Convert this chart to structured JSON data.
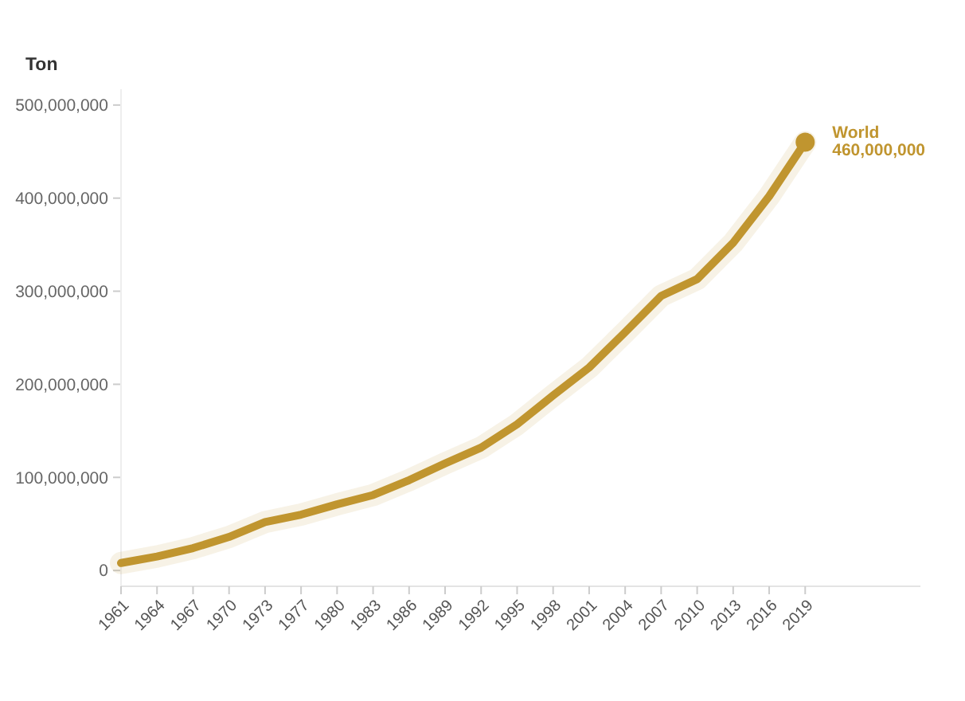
{
  "chart_data": {
    "type": "line",
    "ylabel": "Ton",
    "categories": [
      "1961",
      "1964",
      "1967",
      "1970",
      "1973",
      "1977",
      "1980",
      "1983",
      "1986",
      "1989",
      "1992",
      "1995",
      "1998",
      "2001",
      "2004",
      "2007",
      "2010",
      "2013",
      "2016",
      "2019"
    ],
    "series": [
      {
        "name": "World",
        "color": "#c0952f",
        "values": [
          8000000,
          15000000,
          24000000,
          36000000,
          52000000,
          60000000,
          71000000,
          81000000,
          97000000,
          115000000,
          132000000,
          157000000,
          188000000,
          218000000,
          256000000,
          295000000,
          313000000,
          352000000,
          402000000,
          460000000
        ],
        "value_labels": [
          null,
          null,
          null,
          null,
          null,
          null,
          null,
          null,
          null,
          null,
          null,
          null,
          null,
          null,
          null,
          null,
          null,
          null,
          null,
          "460,000,000"
        ]
      }
    ],
    "ylim": [
      -17000000,
      517000000
    ],
    "yticks": [
      {
        "value": 0,
        "label": "0"
      },
      {
        "value": 100000000,
        "label": "100,000,000"
      },
      {
        "value": 200000000,
        "label": "200,000,000"
      },
      {
        "value": 300000000,
        "label": "300,000,000"
      },
      {
        "value": 400000000,
        "label": "400,000,000"
      },
      {
        "value": 500000000,
        "label": "500,000,000"
      }
    ],
    "grid": false,
    "marker": "none",
    "line_style": "solid"
  }
}
